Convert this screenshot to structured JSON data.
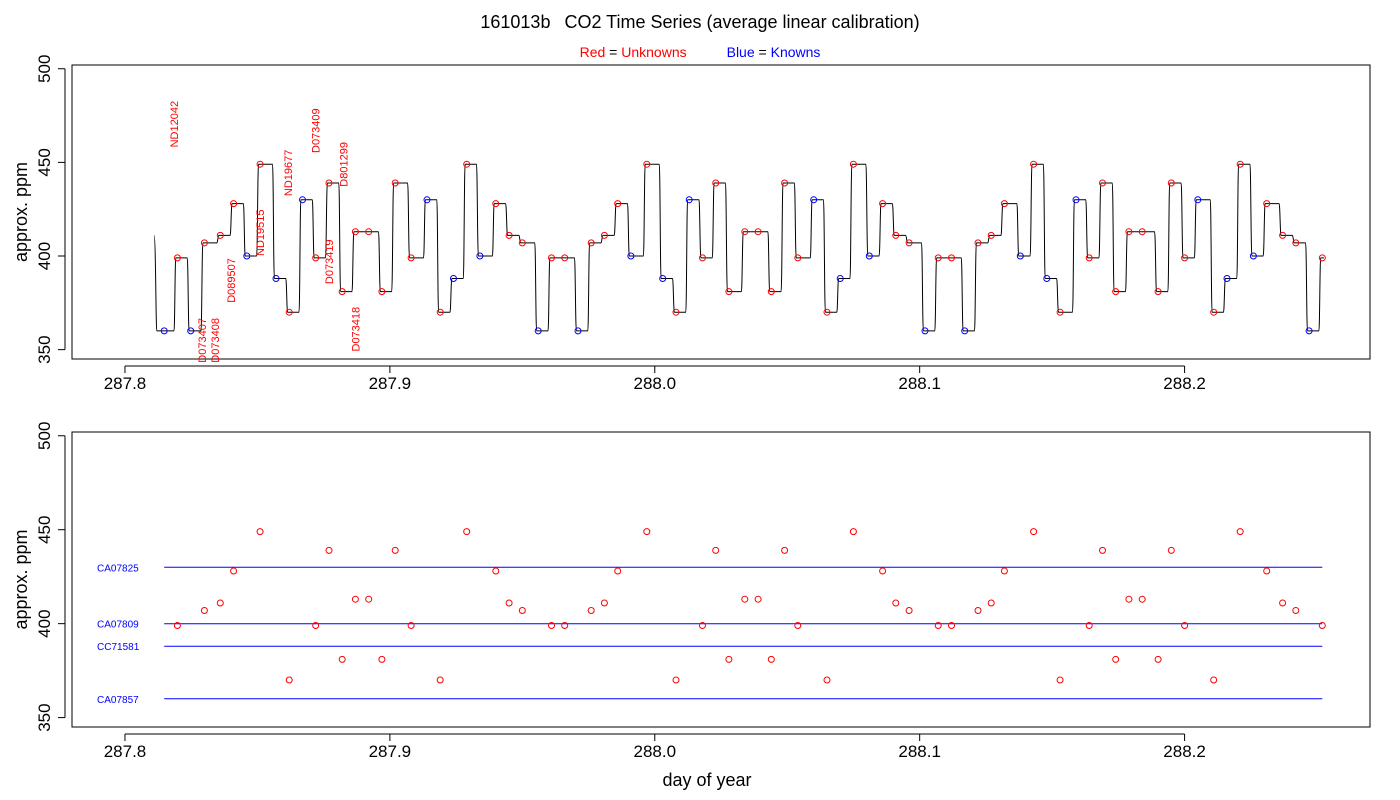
{
  "header": {
    "date_code": "161013b",
    "title": "CO2 Time Series (average linear calibration)"
  },
  "legend": {
    "red_word": "Red",
    "red_meaning": "Unknowns",
    "blue_word": "Blue",
    "blue_meaning": "Knowns",
    "equals": "="
  },
  "colors": {
    "unknown": "#ff0000",
    "known": "#0000ff",
    "trace": "#000000"
  },
  "chart_data": [
    {
      "type": "line",
      "title": "161013b   CO2 Time Series (average linear calibration)",
      "ylabel": "approx. ppm",
      "xlim": [
        287.78,
        288.27
      ],
      "ylim": [
        345,
        502
      ],
      "x_ticks": [
        "287.8",
        "287.9",
        "288.0",
        "288.1",
        "288.2"
      ],
      "x_tick_values": [
        287.8,
        287.9,
        288.0,
        288.1,
        288.2
      ],
      "y_ticks": [
        "350",
        "400",
        "450",
        "500"
      ],
      "y_tick_values": [
        350,
        400,
        450,
        500
      ],
      "trace_start": 287.811,
      "trace_start_value": 411,
      "segments": [
        {
          "x": 287.8148,
          "y": 360,
          "kind": "known"
        },
        {
          "x": 287.8198,
          "y": 399,
          "kind": "unknown"
        },
        {
          "x": 287.8248,
          "y": 360,
          "kind": "known"
        },
        {
          "x": 287.83,
          "y": 407,
          "kind": "unknown"
        },
        {
          "x": 287.836,
          "y": 411,
          "kind": "unknown"
        },
        {
          "x": 287.841,
          "y": 428,
          "kind": "unknown"
        },
        {
          "x": 287.846,
          "y": 400,
          "kind": "known"
        },
        {
          "x": 287.851,
          "y": 449,
          "kind": "unknown"
        },
        {
          "x": 287.857,
          "y": 388,
          "kind": "known"
        },
        {
          "x": 287.862,
          "y": 370,
          "kind": "unknown"
        },
        {
          "x": 287.867,
          "y": 430,
          "kind": "known"
        },
        {
          "x": 287.872,
          "y": 399,
          "kind": "unknown"
        },
        {
          "x": 287.877,
          "y": 439,
          "kind": "unknown"
        },
        {
          "x": 287.882,
          "y": 381,
          "kind": "unknown"
        },
        {
          "x": 287.887,
          "y": 413,
          "kind": "unknown"
        },
        {
          "x": 287.892,
          "y": 413,
          "kind": "unknown"
        },
        {
          "x": 287.897,
          "y": 381,
          "kind": "unknown"
        },
        {
          "x": 287.902,
          "y": 439,
          "kind": "unknown"
        },
        {
          "x": 287.908,
          "y": 399,
          "kind": "unknown"
        },
        {
          "x": 287.914,
          "y": 430,
          "kind": "known"
        },
        {
          "x": 287.919,
          "y": 370,
          "kind": "unknown"
        },
        {
          "x": 287.924,
          "y": 388,
          "kind": "known"
        },
        {
          "x": 287.929,
          "y": 449,
          "kind": "unknown"
        },
        {
          "x": 287.934,
          "y": 400,
          "kind": "known"
        },
        {
          "x": 287.94,
          "y": 428,
          "kind": "unknown"
        },
        {
          "x": 287.945,
          "y": 411,
          "kind": "unknown"
        },
        {
          "x": 287.95,
          "y": 407,
          "kind": "unknown"
        },
        {
          "x": 287.956,
          "y": 360,
          "kind": "known"
        },
        {
          "x": 287.961,
          "y": 399,
          "kind": "unknown"
        },
        {
          "x": 287.966,
          "y": 399,
          "kind": "unknown"
        },
        {
          "x": 287.971,
          "y": 360,
          "kind": "known"
        },
        {
          "x": 287.976,
          "y": 407,
          "kind": "unknown"
        },
        {
          "x": 287.981,
          "y": 411,
          "kind": "unknown"
        },
        {
          "x": 287.986,
          "y": 428,
          "kind": "unknown"
        },
        {
          "x": 287.991,
          "y": 400,
          "kind": "known"
        },
        {
          "x": 287.997,
          "y": 449,
          "kind": "unknown"
        },
        {
          "x": 288.003,
          "y": 388,
          "kind": "known"
        },
        {
          "x": 288.008,
          "y": 370,
          "kind": "unknown"
        },
        {
          "x": 288.013,
          "y": 430,
          "kind": "known"
        },
        {
          "x": 288.018,
          "y": 399,
          "kind": "unknown"
        },
        {
          "x": 288.023,
          "y": 439,
          "kind": "unknown"
        },
        {
          "x": 288.028,
          "y": 381,
          "kind": "unknown"
        },
        {
          "x": 288.034,
          "y": 413,
          "kind": "unknown"
        },
        {
          "x": 288.039,
          "y": 413,
          "kind": "unknown"
        },
        {
          "x": 288.044,
          "y": 381,
          "kind": "unknown"
        },
        {
          "x": 288.049,
          "y": 439,
          "kind": "unknown"
        },
        {
          "x": 288.054,
          "y": 399,
          "kind": "unknown"
        },
        {
          "x": 288.06,
          "y": 430,
          "kind": "known"
        },
        {
          "x": 288.065,
          "y": 370,
          "kind": "unknown"
        },
        {
          "x": 288.07,
          "y": 388,
          "kind": "known"
        },
        {
          "x": 288.075,
          "y": 449,
          "kind": "unknown"
        },
        {
          "x": 288.081,
          "y": 400,
          "kind": "known"
        },
        {
          "x": 288.086,
          "y": 428,
          "kind": "unknown"
        },
        {
          "x": 288.091,
          "y": 411,
          "kind": "unknown"
        },
        {
          "x": 288.096,
          "y": 407,
          "kind": "unknown"
        },
        {
          "x": 288.102,
          "y": 360,
          "kind": "known"
        },
        {
          "x": 288.107,
          "y": 399,
          "kind": "unknown"
        },
        {
          "x": 288.112,
          "y": 399,
          "kind": "unknown"
        },
        {
          "x": 288.117,
          "y": 360,
          "kind": "known"
        },
        {
          "x": 288.122,
          "y": 407,
          "kind": "unknown"
        },
        {
          "x": 288.127,
          "y": 411,
          "kind": "unknown"
        },
        {
          "x": 288.132,
          "y": 428,
          "kind": "unknown"
        },
        {
          "x": 288.138,
          "y": 400,
          "kind": "known"
        },
        {
          "x": 288.143,
          "y": 449,
          "kind": "unknown"
        },
        {
          "x": 288.148,
          "y": 388,
          "kind": "known"
        },
        {
          "x": 288.153,
          "y": 370,
          "kind": "unknown"
        },
        {
          "x": 288.159,
          "y": 430,
          "kind": "known"
        },
        {
          "x": 288.164,
          "y": 399,
          "kind": "unknown"
        },
        {
          "x": 288.169,
          "y": 439,
          "kind": "unknown"
        },
        {
          "x": 288.174,
          "y": 381,
          "kind": "unknown"
        },
        {
          "x": 288.179,
          "y": 413,
          "kind": "unknown"
        },
        {
          "x": 288.184,
          "y": 413,
          "kind": "unknown"
        },
        {
          "x": 288.19,
          "y": 381,
          "kind": "unknown"
        },
        {
          "x": 288.195,
          "y": 439,
          "kind": "unknown"
        },
        {
          "x": 288.2,
          "y": 399,
          "kind": "unknown"
        },
        {
          "x": 288.205,
          "y": 430,
          "kind": "known"
        },
        {
          "x": 288.211,
          "y": 370,
          "kind": "unknown"
        },
        {
          "x": 288.216,
          "y": 388,
          "kind": "known"
        },
        {
          "x": 288.221,
          "y": 449,
          "kind": "unknown"
        },
        {
          "x": 288.226,
          "y": 400,
          "kind": "known"
        },
        {
          "x": 288.231,
          "y": 428,
          "kind": "unknown"
        },
        {
          "x": 288.237,
          "y": 411,
          "kind": "unknown"
        },
        {
          "x": 288.242,
          "y": 407,
          "kind": "unknown"
        },
        {
          "x": 288.247,
          "y": 360,
          "kind": "known"
        },
        {
          "x": 288.252,
          "y": 399,
          "kind": "unknown"
        }
      ],
      "annotations": [
        {
          "text": "ND12042",
          "x": 287.82,
          "y": 458
        },
        {
          "text": "D073407",
          "x": 287.8305,
          "y": 343
        },
        {
          "text": "D073408",
          "x": 287.8355,
          "y": 343
        },
        {
          "text": "D089507",
          "x": 287.8415,
          "y": 375
        },
        {
          "text": "ND19515",
          "x": 287.8525,
          "y": 400
        },
        {
          "text": "ND19677",
          "x": 287.863,
          "y": 432
        },
        {
          "text": "D073409",
          "x": 287.8735,
          "y": 455
        },
        {
          "text": "D073419",
          "x": 287.8785,
          "y": 385
        },
        {
          "text": "D801299",
          "x": 287.884,
          "y": 437
        },
        {
          "text": "D073418",
          "x": 287.8885,
          "y": 349
        }
      ]
    },
    {
      "type": "scatter",
      "xlabel": "day of year",
      "ylabel": "approx. ppm",
      "xlim": [
        287.78,
        288.27
      ],
      "ylim": [
        345,
        502
      ],
      "x_ticks": [
        "287.8",
        "287.9",
        "288.0",
        "288.1",
        "288.2"
      ],
      "x_tick_values": [
        287.8,
        287.9,
        288.0,
        288.1,
        288.2
      ],
      "y_ticks": [
        "350",
        "400",
        "450",
        "500"
      ],
      "y_tick_values": [
        350,
        400,
        450,
        500
      ],
      "points_source": "unknown segments of chart 1",
      "reference_lines": [
        {
          "name": "CA07825",
          "y": 430,
          "x_start": 287.8148,
          "x_end": 288.252
        },
        {
          "name": "CA07809",
          "y": 400,
          "x_start": 287.8148,
          "x_end": 288.252
        },
        {
          "name": "CC71581",
          "y": 388,
          "x_start": 287.8148,
          "x_end": 288.252
        },
        {
          "name": "CA07857",
          "y": 360,
          "x_start": 287.8148,
          "x_end": 288.252
        }
      ]
    }
  ]
}
